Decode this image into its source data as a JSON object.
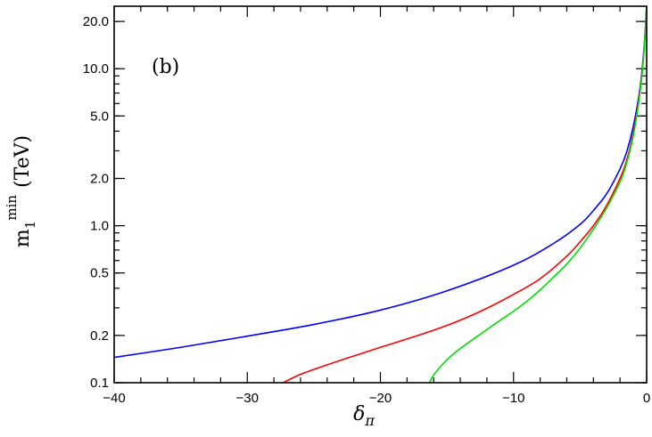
{
  "chart_data": {
    "type": "line",
    "panel_label": "(b)",
    "xlabel": {
      "main": "δ",
      "sub": "π"
    },
    "ylabel": {
      "main": "m",
      "sub": "1",
      "sup": "min",
      "unit": "(TeV)"
    },
    "xlim": [
      -40,
      0
    ],
    "ylim": [
      0.1,
      25
    ],
    "yscale": "log",
    "grid": false,
    "xticks": [
      -40,
      -30,
      -20,
      -10,
      0
    ],
    "xtick_labels": [
      "−40",
      "−30",
      "−20",
      "−10",
      "0"
    ],
    "yticks": [
      0.1,
      0.2,
      0.5,
      1.0,
      2.0,
      5.0,
      10.0,
      20.0
    ],
    "ytick_labels": [
      "0.1",
      "0.2",
      "0.5",
      "1.0",
      "2.0",
      "5.0",
      "10.0",
      "20.0"
    ],
    "series": [
      {
        "color": "#0000ff",
        "x": [
          -40,
          -35,
          -30,
          -25,
          -20,
          -15,
          -10,
          -7,
          -5,
          -4,
          -3,
          -2,
          -1.5,
          -1,
          -0.5,
          -0.2,
          0
        ],
        "y": [
          0.145,
          0.168,
          0.198,
          0.235,
          0.29,
          0.385,
          0.56,
          0.77,
          1.02,
          1.25,
          1.6,
          2.3,
          2.95,
          4.3,
          7.5,
          13.5,
          25
        ]
      },
      {
        "color": "#ff0000",
        "x": [
          -27.3,
          -26,
          -24,
          -22,
          -20,
          -18,
          -16,
          -14,
          -12,
          -10,
          -8,
          -6,
          -5,
          -4,
          -3,
          -2,
          -1.5,
          -1,
          -0.5,
          -0.2,
          0
        ],
        "y": [
          0.1,
          0.113,
          0.13,
          0.148,
          0.168,
          0.19,
          0.216,
          0.25,
          0.298,
          0.365,
          0.46,
          0.64,
          0.79,
          1.0,
          1.35,
          2.0,
          2.6,
          3.9,
          7.2,
          13.0,
          25
        ]
      },
      {
        "color": "#00e000",
        "x": [
          -16.3,
          -16,
          -15,
          -14,
          -13,
          -12,
          -11,
          -10,
          -9,
          -8,
          -7,
          -6,
          -5,
          -4,
          -3,
          -2,
          -1.5,
          -1,
          -0.5,
          -0.2,
          0
        ],
        "y": [
          0.1,
          0.112,
          0.14,
          0.165,
          0.19,
          0.218,
          0.25,
          0.285,
          0.33,
          0.39,
          0.47,
          0.57,
          0.72,
          0.95,
          1.3,
          1.9,
          2.5,
          3.75,
          7.0,
          12.8,
          25
        ]
      }
    ]
  }
}
